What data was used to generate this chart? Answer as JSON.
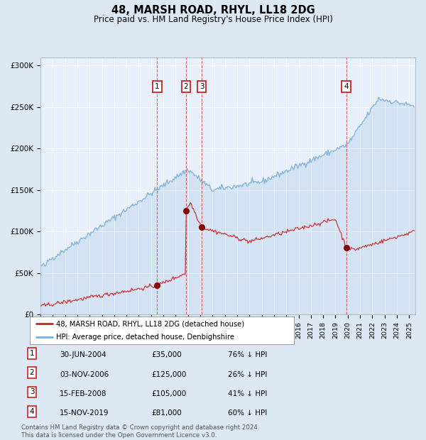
{
  "title": "48, MARSH ROAD, RHYL, LL18 2DG",
  "subtitle": "Price paid vs. HM Land Registry's House Price Index (HPI)",
  "background_color": "#dce9f5",
  "plot_bg_color": "#e8f0fb",
  "transactions": [
    {
      "date": 2004.5,
      "price": 35000,
      "label": "1"
    },
    {
      "date": 2006.84,
      "price": 125000,
      "label": "2"
    },
    {
      "date": 2008.12,
      "price": 105000,
      "label": "3"
    },
    {
      "date": 2019.87,
      "price": 81000,
      "label": "4"
    }
  ],
  "legend_property": "48, MARSH ROAD, RHYL, LL18 2DG (detached house)",
  "legend_hpi": "HPI: Average price, detached house, Denbighshire",
  "table_rows": [
    {
      "num": "1",
      "date": "30-JUN-2004",
      "price": "£35,000",
      "pct": "76% ↓ HPI"
    },
    {
      "num": "2",
      "date": "03-NOV-2006",
      "price": "£125,000",
      "pct": "26% ↓ HPI"
    },
    {
      "num": "3",
      "date": "15-FEB-2008",
      "price": "£105,000",
      "pct": "41% ↓ HPI"
    },
    {
      "num": "4",
      "date": "15-NOV-2019",
      "price": "£81,000",
      "pct": "60% ↓ HPI"
    }
  ],
  "footer": "Contains HM Land Registry data © Crown copyright and database right 2024.\nThis data is licensed under the Open Government Licence v3.0.",
  "ylim": [
    0,
    310000
  ],
  "xlim_start": 1995.0,
  "xlim_end": 2025.5
}
